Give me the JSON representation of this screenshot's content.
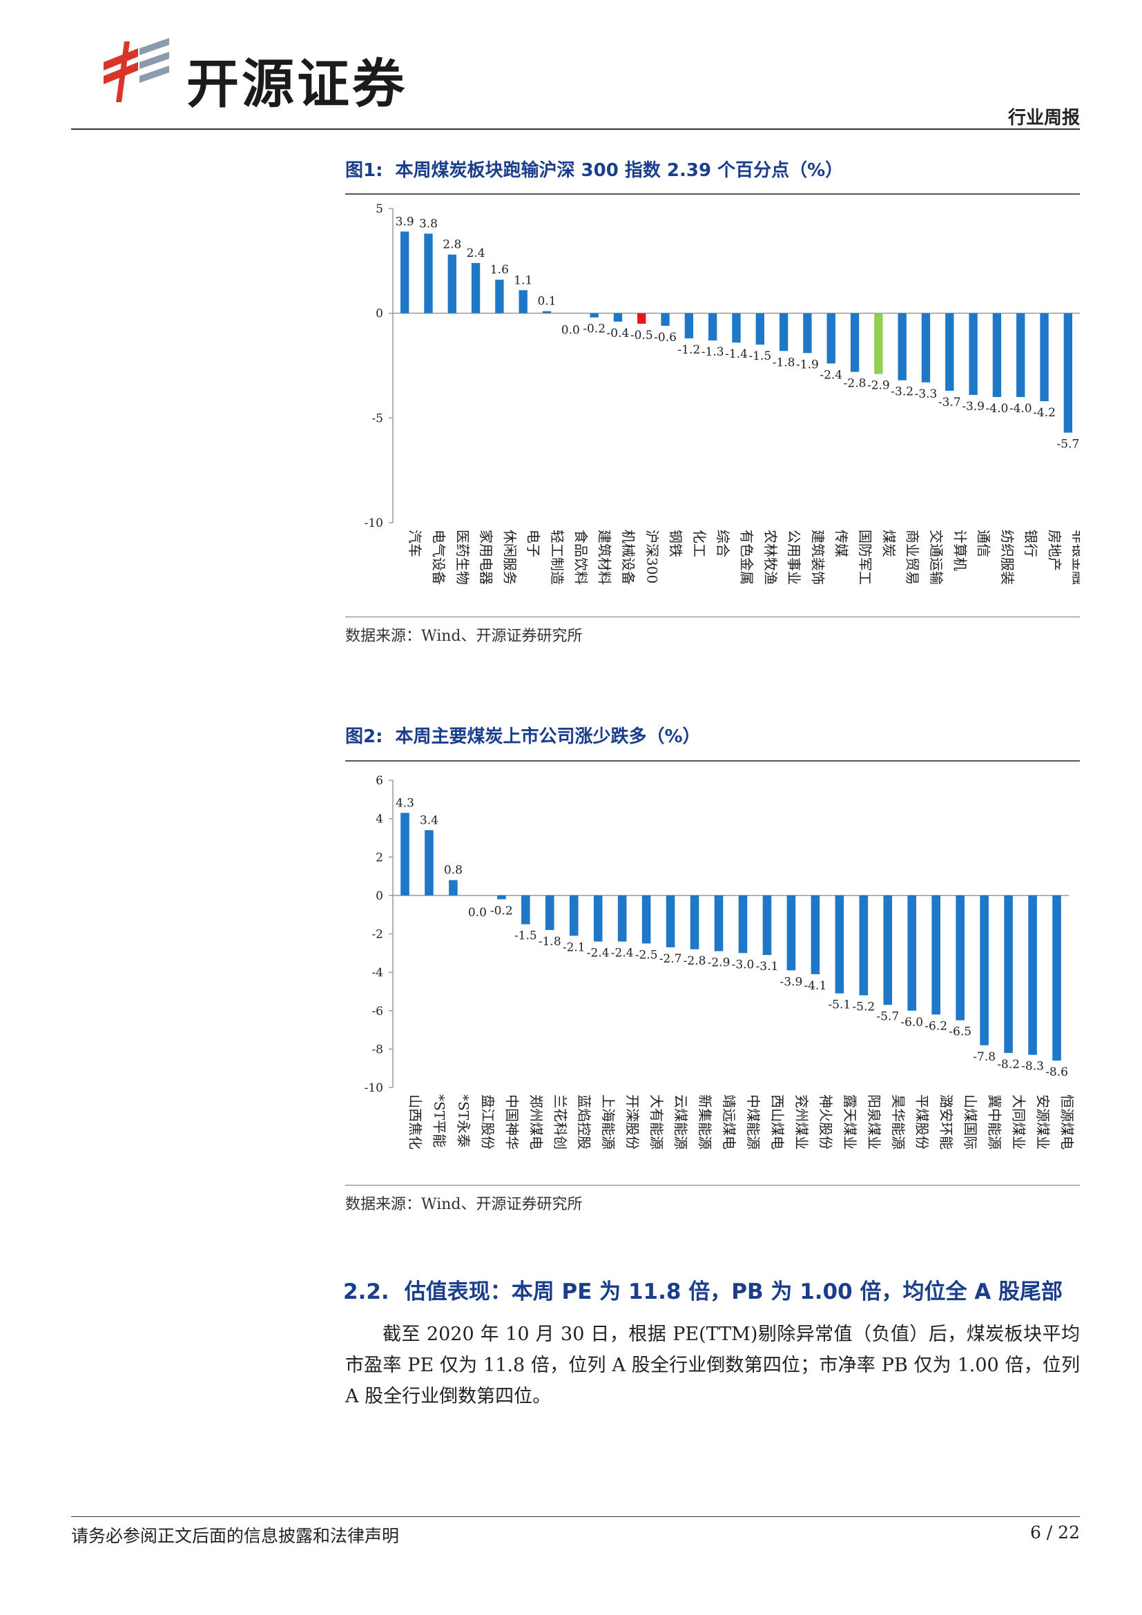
{
  "header": {
    "brand": "开源证券",
    "report_type": "行业周报"
  },
  "figure1": {
    "label": "图1:",
    "title": "本周煤炭板块跑输沪深 300 指数 2.39 个百分点（%）",
    "source": "数据来源：Wind、开源证券研究所",
    "chart_data": {
      "type": "bar",
      "ylim": [
        -10,
        5
      ],
      "yticks": [
        5,
        0,
        -5,
        -10
      ],
      "grid": false,
      "categories": [
        "汽车",
        "电气设备",
        "医药生物",
        "家用电器",
        "休闲服务",
        "电子",
        "轻工制造",
        "食品饮料",
        "建筑材料",
        "机械设备",
        "沪深300",
        "钢铁",
        "化工",
        "综合",
        "有色金属",
        "农林牧渔",
        "公用事业",
        "建筑装饰",
        "传媒",
        "国防军工",
        "煤炭",
        "商业贸易",
        "交通运输",
        "计算机",
        "通信",
        "纺织服装",
        "银行",
        "房地产",
        "非银金融"
      ],
      "values": [
        3.9,
        3.8,
        2.8,
        2.4,
        1.6,
        1.1,
        0.1,
        0.0,
        -0.2,
        -0.4,
        -0.5,
        -0.6,
        -1.2,
        -1.3,
        -1.4,
        -1.5,
        -1.8,
        -1.9,
        -2.4,
        -2.8,
        -2.9,
        -3.2,
        -3.3,
        -3.7,
        -3.9,
        -4.0,
        -4.0,
        -4.2,
        -5.7
      ],
      "value_labels": [
        "3.9",
        "3.8",
        "2.8",
        "2.4",
        "1.6",
        "1.1",
        "0.1",
        "0.0",
        "-0.2",
        "-0.4",
        "-0.5",
        "-0.6",
        "-1.2",
        "-1.3",
        "-1.4",
        "-1.5",
        "-1.8",
        "-1.9",
        "-2.4",
        "-2.8",
        "-2.9",
        "-3.2",
        "-3.3",
        "-3.7",
        "-3.9",
        "-4.0",
        "-4.0",
        "-4.2",
        "-5.7"
      ],
      "colors": {
        "default": "#1f77c8",
        "highlight_red": "#e3171d",
        "highlight_green": "#8fd14f"
      },
      "highlight": {
        "沪深300": "highlight_red",
        "煤炭": "highlight_green"
      }
    }
  },
  "figure2": {
    "label": "图2:",
    "title": "本周主要煤炭上市公司涨少跌多（%）",
    "source": "数据来源：Wind、开源证券研究所",
    "chart_data": {
      "type": "bar",
      "ylim": [
        -10,
        6
      ],
      "yticks": [
        6,
        4,
        2,
        0,
        -2,
        -4,
        -6,
        -8,
        -10
      ],
      "grid": false,
      "categories": [
        "山西焦化",
        "*ST平能",
        "*ST永泰",
        "盘江股份",
        "中国神华",
        "郑州煤电",
        "兰花科创",
        "蓝焰控股",
        "上海能源",
        "开滦股份",
        "大有能源",
        "云煤能源",
        "新集能源",
        "靖远煤电",
        "中煤能源",
        "西山煤电",
        "兖州煤业",
        "神火股份",
        "露天煤业",
        "阳泉煤业",
        "昊华能源",
        "平煤股份",
        "潞安环能",
        "山煤国际",
        "冀中能源",
        "大同煤业",
        "安源煤业",
        "恒源煤电"
      ],
      "values": [
        4.3,
        3.4,
        0.8,
        0.0,
        -0.2,
        -1.5,
        -1.8,
        -2.1,
        -2.4,
        -2.4,
        -2.5,
        -2.7,
        -2.8,
        -2.9,
        -3.0,
        -3.1,
        -3.9,
        -4.1,
        -5.1,
        -5.2,
        -5.7,
        -6.0,
        -6.2,
        -6.5,
        -7.8,
        -8.2,
        -8.3,
        -8.6
      ],
      "value_labels": [
        "4.3",
        "3.4",
        "0.8",
        "0.0",
        "-0.2",
        "-1.5",
        "-1.8",
        "-2.1",
        "-2.4",
        "-2.4",
        "-2.5",
        "-2.7",
        "-2.8",
        "-2.9",
        "-3.0",
        "-3.1",
        "-3.9",
        "-4.1",
        "-5.1",
        "-5.2",
        "-5.7",
        "-6.0",
        "-6.2",
        "-6.5",
        "-7.8",
        "-8.2",
        "-8.3",
        "-8.6"
      ],
      "colors": {
        "default": "#1f77c8"
      }
    }
  },
  "section": {
    "number": "2.2.",
    "title": "估值表现：本周 PE 为 11.8 倍，PB 为 1.00 倍，均位全 A 股尾部",
    "paragraph": "截至 2020 年 10 月 30 日，根据 PE(TTM)剔除异常值（负值）后，煤炭板块平均市盈率 PE 仅为 11.8 倍，位列 A 股全行业倒数第四位；市净率 PB 仅为 1.00 倍，位列 A 股全行业倒数第四位。"
  },
  "footer": {
    "disclaimer": "请务必参阅正文后面的信息披露和法律声明",
    "page": "6 / 22"
  }
}
